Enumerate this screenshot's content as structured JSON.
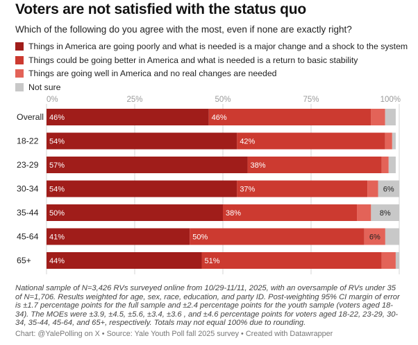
{
  "title": "Voters are not satisfied with the status quo",
  "subtitle": "Which of the following do you agree with the most, even if none are exactly right?",
  "colors": {
    "major_change": "#a01d1a",
    "basic_stability": "#cc3a30",
    "going_well": "#e36358",
    "not_sure": "#c8c8c8",
    "gridline": "#d6d6d6"
  },
  "chart_data": {
    "type": "bar",
    "orientation": "horizontal",
    "stacked": true,
    "xlim": [
      0,
      100
    ],
    "xticks": [
      "0%",
      "25%",
      "50%",
      "75%",
      "100%"
    ],
    "categories": [
      "Overall",
      "18-22",
      "23-29",
      "30-34",
      "35-44",
      "45-64",
      "65+"
    ],
    "series": [
      {
        "name": "Things in America are going poorly and what is needed is a major change and a shock to the system",
        "color": "#a01d1a",
        "values": [
          46,
          54,
          57,
          54,
          50,
          41,
          44
        ],
        "labels": [
          "46%",
          "54%",
          "57%",
          "54%",
          "50%",
          "41%",
          "44%"
        ]
      },
      {
        "name": "Things could be going better in America and what is needed is a return to basic stability",
        "color": "#cc3a30",
        "values": [
          46,
          42,
          38,
          37,
          38,
          50,
          51
        ],
        "labels": [
          "46%",
          "42%",
          "38%",
          "37%",
          "38%",
          "50%",
          "51%"
        ]
      },
      {
        "name": "Things are going well in America and no real changes are needed",
        "color": "#e36358",
        "values": [
          4,
          2,
          2,
          3,
          4,
          6,
          4
        ],
        "labels": [
          "",
          "",
          "",
          "",
          "",
          "6%",
          ""
        ]
      },
      {
        "name": "Not sure",
        "color": "#c8c8c8",
        "values": [
          3,
          1,
          2,
          6,
          8,
          4,
          1
        ],
        "labels": [
          "",
          "",
          "",
          "6%",
          "8%",
          "",
          ""
        ]
      }
    ]
  },
  "footnote": "National sample of N=3,426 RVs surveyed online from 10/29-11/11, 2025, with an oversample of RVs under 35 of N=1,706. Results weighted for age, sex, race, education, and party ID. Post-weighting 95% CI margin of error is ±1.7 percentage points for the full sample and ±2.4 percentage points for the youth sample (voters aged 18-34). The MOEs were ±3.9, ±4.5, ±5.6, ±3.4, ±3.6 , and ±4.6 percentage points for voters aged 18-22, 23-29, 30-34, 35-44, 45-64, and 65+, respectively. Totals may not equal 100% due to rounding.",
  "source": "Chart: @YalePolling on X • Source: Yale Youth Poll fall 2025 survey • Created with Datawrapper"
}
